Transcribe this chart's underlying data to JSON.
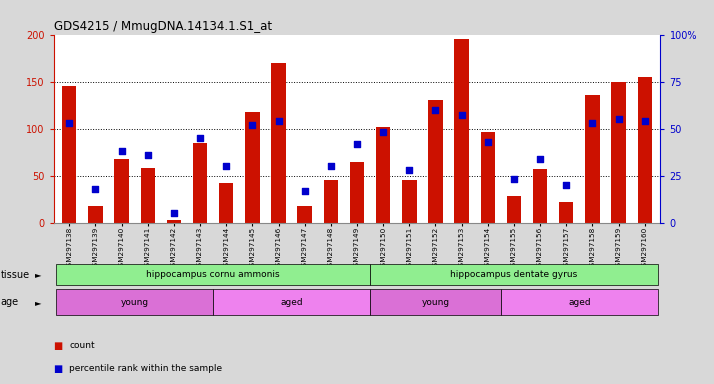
{
  "title": "GDS4215 / MmugDNA.14134.1.S1_at",
  "samples": [
    "GSM297138",
    "GSM297139",
    "GSM297140",
    "GSM297141",
    "GSM297142",
    "GSM297143",
    "GSM297144",
    "GSM297145",
    "GSM297146",
    "GSM297147",
    "GSM297148",
    "GSM297149",
    "GSM297150",
    "GSM297151",
    "GSM297152",
    "GSM297153",
    "GSM297154",
    "GSM297155",
    "GSM297156",
    "GSM297157",
    "GSM297158",
    "GSM297159",
    "GSM297160"
  ],
  "counts": [
    145,
    18,
    68,
    58,
    3,
    85,
    42,
    118,
    170,
    18,
    45,
    65,
    102,
    45,
    130,
    195,
    96,
    28,
    57,
    22,
    136,
    150,
    155
  ],
  "percentiles": [
    53,
    18,
    38,
    36,
    5,
    45,
    30,
    52,
    54,
    17,
    30,
    42,
    48,
    28,
    60,
    57,
    43,
    23,
    34,
    20,
    53,
    55,
    54
  ],
  "tissue_groups": [
    {
      "label": "hippocampus cornu ammonis",
      "start": 0,
      "end": 12,
      "color": "#90ee90"
    },
    {
      "label": "hippocampus dentate gyrus",
      "start": 12,
      "end": 23,
      "color": "#90ee90"
    }
  ],
  "age_groups": [
    {
      "label": "young",
      "start": 0,
      "end": 6,
      "color": "#da70d6"
    },
    {
      "label": "aged",
      "start": 6,
      "end": 12,
      "color": "#ee82ee"
    },
    {
      "label": "young",
      "start": 12,
      "end": 17,
      "color": "#da70d6"
    },
    {
      "label": "aged",
      "start": 17,
      "end": 23,
      "color": "#ee82ee"
    }
  ],
  "bar_color": "#cc1100",
  "dot_color": "#0000cc",
  "left_ylim": [
    0,
    200
  ],
  "right_ylim": [
    0,
    100
  ],
  "left_yticks": [
    0,
    50,
    100,
    150,
    200
  ],
  "right_yticks": [
    0,
    25,
    50,
    75,
    100
  ],
  "right_yticklabels": [
    "0",
    "25",
    "50",
    "75",
    "100%"
  ],
  "bg_color": "#d8d8d8",
  "plot_bg": "#ffffff",
  "tissue_label": "tissue",
  "age_label": "age"
}
